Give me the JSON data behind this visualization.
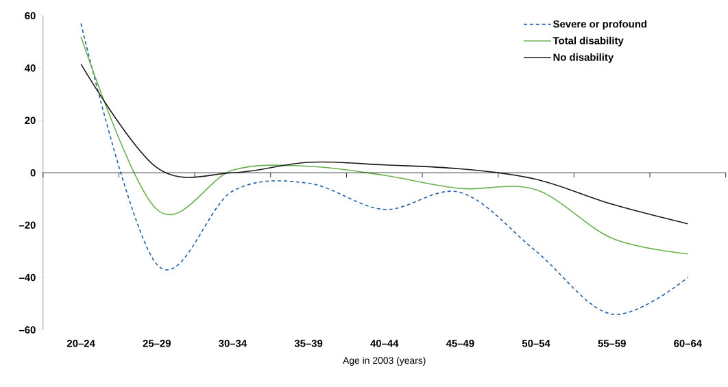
{
  "chart_data": {
    "type": "line",
    "xlabel": "Age in 2003 (years)",
    "categories": [
      "20–24",
      "25–29",
      "30–34",
      "35–39",
      "40–44",
      "45–49",
      "50–54",
      "55–59",
      "60–64"
    ],
    "series": [
      {
        "name": "Severe or profound",
        "color": "#1f5fa8",
        "line_style": "dashed",
        "values": [
          57,
          -35,
          -7,
          -4,
          -14,
          -7.5,
          -30,
          -54,
          -40
        ]
      },
      {
        "name": "Total disability",
        "color": "#6ab04c",
        "line_style": "solid",
        "values": [
          52,
          -14,
          1,
          2.5,
          -1,
          -6,
          -6.5,
          -25,
          -31
        ]
      },
      {
        "name": "No disability",
        "color": "#1a1a1a",
        "line_style": "solid",
        "values": [
          41.5,
          2,
          0,
          4,
          3,
          1.5,
          -2.5,
          -12,
          -19.5
        ]
      }
    ],
    "ylim": [
      -60,
      60
    ],
    "yticks": [
      {
        "value": -60,
        "label": "–60"
      },
      {
        "value": -40,
        "label": "–40"
      },
      {
        "value": -20,
        "label": "–20"
      },
      0,
      20,
      40,
      60
    ],
    "ref_lines": [
      {
        "axis": "y",
        "value": 0,
        "color": "#000000"
      }
    ],
    "legend": "top right",
    "grid": false,
    "marker": "none"
  }
}
